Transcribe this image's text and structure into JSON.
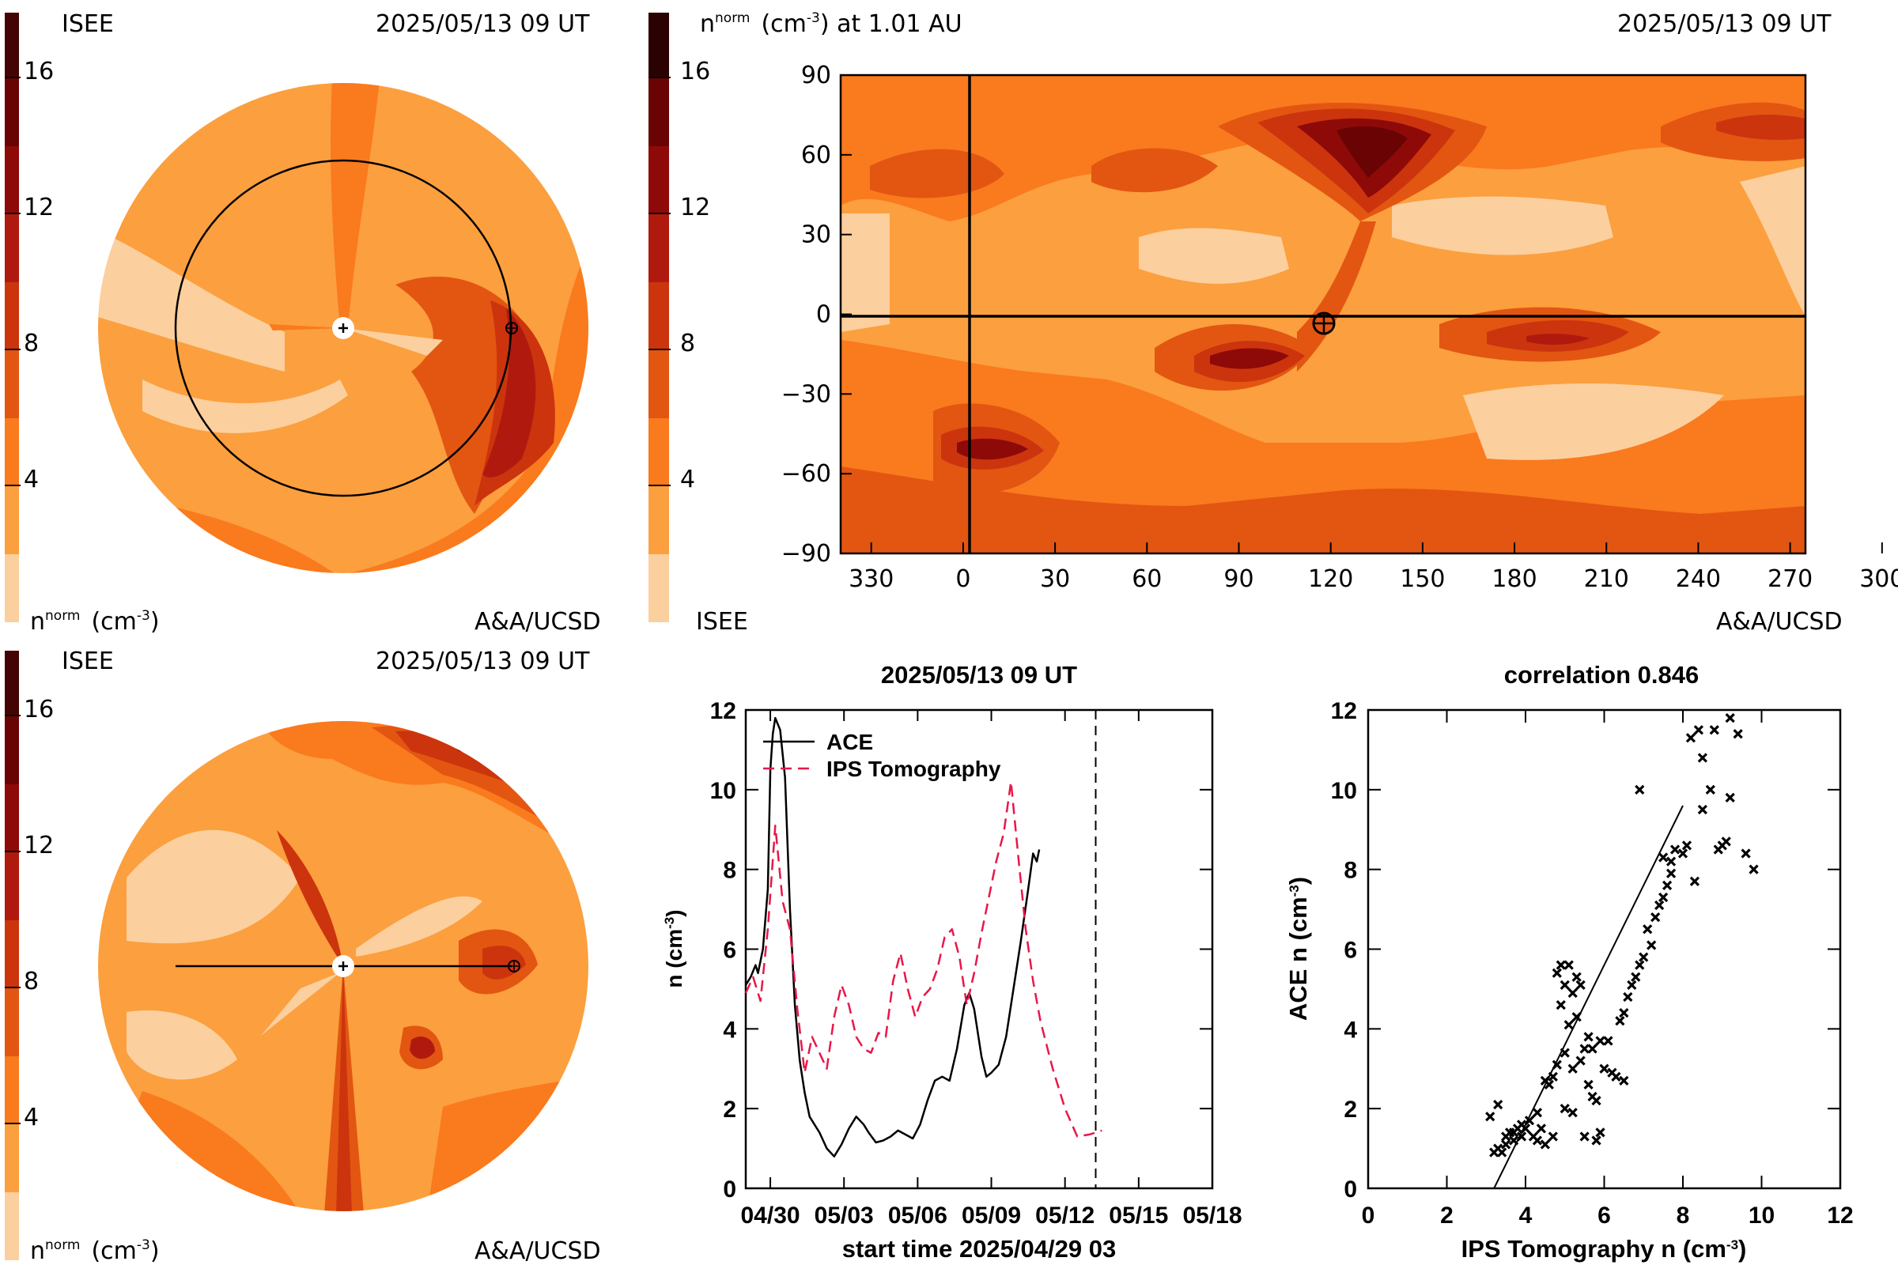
{
  "colors": {
    "scale": [
      "#fccf9e",
      "#fc9f3e",
      "#fa7a1e",
      "#e25612",
      "#cc340e",
      "#b01a0e",
      "#8e0a08",
      "#6a0404",
      "#440404",
      "#2a0202"
    ],
    "ace_line": "#000000",
    "ips_line": "#e8174a"
  },
  "colorbar": {
    "ticks": [
      "4",
      "8",
      "12",
      "16"
    ],
    "range": [
      0,
      18
    ]
  },
  "panel_tl": {
    "left_label": "ISEE",
    "date": "2025/05/13 09 UT",
    "units_main": "n",
    "units_sup": "norm",
    "units_tail": "(cm",
    "units_exp": "-3",
    "units_close": ")",
    "credit": "A&A/UCSD"
  },
  "panel_bl": {
    "left_label": "ISEE",
    "date": "2025/05/13 09 UT",
    "units_main": "n",
    "units_sup": "norm",
    "units_tail": "(cm",
    "units_exp": "-3",
    "units_close": ")",
    "credit": "A&A/UCSD"
  },
  "panel_map": {
    "title_main": "n",
    "title_sup": "norm",
    "title_tail": "(cm",
    "title_exp": "-3",
    "title_close": ") at 1.01 AU",
    "date": "2025/05/13 09 UT",
    "left_label": "ISEE",
    "credit": "A&A/UCSD",
    "x_ticks": [
      "330",
      "0",
      "30",
      "60",
      "90",
      "120",
      "150",
      "180",
      "210",
      "240",
      "270",
      "300"
    ],
    "y_ticks": [
      "90",
      "60",
      "30",
      "0",
      "−30",
      "−60",
      "−90"
    ]
  },
  "chart_data": [
    {
      "type": "line",
      "title": "2025/05/13 09 UT",
      "xlabel": "start time 2025/04/29 03",
      "ylabel_main": "n (cm",
      "ylabel_exp": "-3",
      "ylabel_close": ")",
      "x_tick_labels": [
        "04/30",
        "05/03",
        "05/06",
        "05/09",
        "05/12",
        "05/15",
        "05/18"
      ],
      "x_tick_days": [
        1,
        4,
        7,
        10,
        13,
        16,
        19
      ],
      "y_ticks": [
        "0",
        "2",
        "4",
        "6",
        "8",
        "10",
        "12"
      ],
      "xlim_days": [
        0,
        19
      ],
      "ylim": [
        0,
        12
      ],
      "marker_day": 14.25,
      "series": [
        {
          "name": "ACE",
          "style": "solid",
          "points": [
            [
              0.0,
              5.1
            ],
            [
              0.2,
              5.3
            ],
            [
              0.4,
              5.6
            ],
            [
              0.5,
              5.4
            ],
            [
              0.7,
              6.0
            ],
            [
              0.9,
              7.5
            ],
            [
              1.0,
              10.5
            ],
            [
              1.1,
              11.4
            ],
            [
              1.2,
              11.8
            ],
            [
              1.4,
              11.5
            ],
            [
              1.6,
              10.3
            ],
            [
              1.8,
              7.0
            ],
            [
              2.0,
              4.6
            ],
            [
              2.2,
              3.2
            ],
            [
              2.4,
              2.4
            ],
            [
              2.6,
              1.8
            ],
            [
              2.8,
              1.6
            ],
            [
              3.0,
              1.4
            ],
            [
              3.3,
              1.0
            ],
            [
              3.6,
              0.8
            ],
            [
              3.9,
              1.1
            ],
            [
              4.2,
              1.5
            ],
            [
              4.5,
              1.8
            ],
            [
              4.8,
              1.6
            ],
            [
              5.0,
              1.4
            ],
            [
              5.3,
              1.15
            ],
            [
              5.6,
              1.2
            ],
            [
              5.9,
              1.3
            ],
            [
              6.2,
              1.45
            ],
            [
              6.5,
              1.35
            ],
            [
              6.8,
              1.25
            ],
            [
              7.1,
              1.6
            ],
            [
              7.4,
              2.2
            ],
            [
              7.7,
              2.7
            ],
            [
              8.0,
              2.8
            ],
            [
              8.3,
              2.7
            ],
            [
              8.6,
              3.5
            ],
            [
              8.9,
              4.6
            ],
            [
              9.1,
              4.9
            ],
            [
              9.3,
              4.5
            ],
            [
              9.6,
              3.3
            ],
            [
              9.8,
              2.8
            ],
            [
              10.0,
              2.9
            ],
            [
              10.3,
              3.1
            ],
            [
              10.6,
              3.8
            ],
            [
              10.9,
              5.0
            ],
            [
              11.2,
              6.2
            ],
            [
              11.5,
              7.5
            ],
            [
              11.7,
              8.4
            ],
            [
              11.85,
              8.2
            ],
            [
              11.95,
              8.5
            ]
          ]
        },
        {
          "name": "IPS Tomography",
          "style": "dashed",
          "points": [
            [
              0.0,
              4.9
            ],
            [
              0.3,
              5.3
            ],
            [
              0.6,
              4.7
            ],
            [
              0.9,
              6.5
            ],
            [
              1.2,
              9.1
            ],
            [
              1.5,
              7.2
            ],
            [
              1.8,
              6.5
            ],
            [
              2.1,
              4.5
            ],
            [
              2.4,
              2.9
            ],
            [
              2.7,
              3.8
            ],
            [
              3.0,
              3.4
            ],
            [
              3.3,
              3.0
            ],
            [
              3.6,
              4.3
            ],
            [
              3.9,
              5.1
            ],
            [
              4.2,
              4.6
            ],
            [
              4.5,
              3.8
            ],
            [
              4.8,
              3.5
            ],
            [
              5.1,
              3.4
            ],
            [
              5.4,
              3.9
            ],
            [
              5.7,
              3.8
            ],
            [
              6.0,
              5.2
            ],
            [
              6.3,
              5.9
            ],
            [
              6.6,
              5.0
            ],
            [
              6.9,
              4.3
            ],
            [
              7.2,
              4.8
            ],
            [
              7.5,
              5.0
            ],
            [
              7.8,
              5.5
            ],
            [
              8.1,
              6.3
            ],
            [
              8.4,
              6.5
            ],
            [
              8.7,
              5.8
            ],
            [
              9.0,
              4.6
            ],
            [
              9.3,
              5.4
            ],
            [
              9.6,
              6.4
            ],
            [
              9.9,
              7.3
            ],
            [
              10.2,
              8.2
            ],
            [
              10.5,
              8.9
            ],
            [
              10.8,
              10.2
            ],
            [
              11.1,
              8.3
            ],
            [
              11.4,
              6.5
            ],
            [
              11.7,
              5.2
            ],
            [
              12.0,
              4.2
            ],
            [
              12.5,
              3.0
            ],
            [
              13.0,
              2.0
            ],
            [
              13.5,
              1.3
            ],
            [
              14.0,
              1.35
            ],
            [
              14.5,
              1.45
            ]
          ]
        }
      ]
    },
    {
      "type": "scatter",
      "title": "correlation 0.846",
      "xlabel_main": "IPS Tomography n (cm",
      "xlabel_exp": "-3",
      "xlabel_close": ")",
      "ylabel_main": "ACE n (cm",
      "ylabel_exp": "-3",
      "ylabel_close": ")",
      "x_ticks": [
        "0",
        "2",
        "4",
        "6",
        "8",
        "10",
        "12"
      ],
      "y_ticks": [
        "0",
        "2",
        "4",
        "6",
        "8",
        "10",
        "12"
      ],
      "xlim": [
        0,
        12
      ],
      "ylim": [
        0,
        12
      ],
      "fit_line": [
        [
          3.2,
          0.0
        ],
        [
          8.0,
          9.6
        ]
      ],
      "points": [
        [
          3.1,
          1.8
        ],
        [
          3.2,
          0.9
        ],
        [
          3.3,
          1.0
        ],
        [
          3.3,
          2.1
        ],
        [
          3.4,
          0.9
        ],
        [
          3.5,
          1.1
        ],
        [
          3.5,
          1.3
        ],
        [
          3.6,
          1.4
        ],
        [
          3.7,
          1.2
        ],
        [
          3.7,
          1.4
        ],
        [
          3.8,
          1.5
        ],
        [
          3.9,
          1.3
        ],
        [
          3.9,
          1.6
        ],
        [
          4.0,
          1.5
        ],
        [
          4.1,
          1.7
        ],
        [
          4.2,
          1.3
        ],
        [
          4.3,
          1.2
        ],
        [
          4.3,
          1.9
        ],
        [
          4.4,
          1.5
        ],
        [
          4.5,
          2.7
        ],
        [
          4.5,
          1.1
        ],
        [
          4.6,
          2.6
        ],
        [
          4.7,
          2.8
        ],
        [
          4.7,
          1.3
        ],
        [
          4.8,
          3.1
        ],
        [
          4.8,
          5.4
        ],
        [
          4.9,
          5.6
        ],
        [
          4.9,
          4.6
        ],
        [
          5.0,
          5.1
        ],
        [
          5.0,
          3.4
        ],
        [
          5.0,
          2.0
        ],
        [
          5.1,
          5.6
        ],
        [
          5.1,
          4.1
        ],
        [
          5.2,
          4.9
        ],
        [
          5.2,
          3.0
        ],
        [
          5.2,
          1.9
        ],
        [
          5.3,
          5.3
        ],
        [
          5.3,
          4.3
        ],
        [
          5.4,
          5.1
        ],
        [
          5.4,
          3.2
        ],
        [
          5.5,
          3.5
        ],
        [
          5.5,
          1.3
        ],
        [
          5.6,
          3.8
        ],
        [
          5.6,
          2.6
        ],
        [
          5.7,
          3.5
        ],
        [
          5.7,
          2.3
        ],
        [
          5.8,
          2.2
        ],
        [
          5.8,
          1.2
        ],
        [
          5.9,
          3.7
        ],
        [
          5.9,
          1.4
        ],
        [
          6.0,
          3.0
        ],
        [
          6.1,
          3.7
        ],
        [
          6.2,
          2.9
        ],
        [
          6.3,
          2.8
        ],
        [
          6.4,
          4.2
        ],
        [
          6.5,
          2.7
        ],
        [
          6.5,
          4.4
        ],
        [
          6.6,
          4.8
        ],
        [
          6.7,
          5.1
        ],
        [
          6.8,
          5.3
        ],
        [
          6.9,
          5.6
        ],
        [
          7.0,
          5.8
        ],
        [
          7.1,
          6.5
        ],
        [
          7.2,
          6.1
        ],
        [
          7.3,
          6.8
        ],
        [
          7.4,
          7.1
        ],
        [
          7.5,
          7.3
        ],
        [
          7.6,
          7.6
        ],
        [
          7.7,
          7.9
        ],
        [
          7.7,
          8.2
        ],
        [
          7.8,
          8.5
        ],
        [
          8.0,
          8.4
        ],
        [
          8.1,
          8.6
        ],
        [
          8.3,
          7.7
        ],
        [
          8.5,
          9.5
        ],
        [
          8.7,
          10.0
        ],
        [
          8.9,
          8.5
        ],
        [
          8.8,
          11.5
        ],
        [
          9.1,
          8.7
        ],
        [
          9.2,
          9.8
        ],
        [
          9.4,
          11.4
        ],
        [
          9.6,
          8.4
        ],
        [
          9.8,
          8.0
        ],
        [
          7.5,
          8.3
        ],
        [
          8.4,
          11.5
        ],
        [
          8.5,
          10.8
        ],
        [
          9.0,
          8.6
        ],
        [
          9.2,
          11.8
        ],
        [
          8.2,
          11.3
        ],
        [
          6.9,
          10.0
        ]
      ]
    }
  ]
}
